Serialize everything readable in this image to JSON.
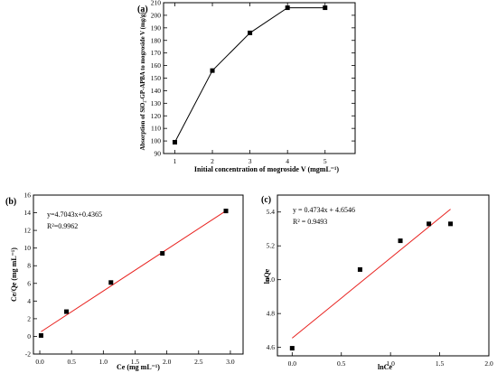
{
  "chart_data": [
    {
      "id": "a",
      "panel_label": "(a)",
      "type": "line",
      "xlabel": "Initial concentration of mogroside V (mgmL⁻¹)",
      "ylabel": "Absorption of SiO₂-GP-APBA to mogroside V (mg/g)",
      "xlim": [
        0.7,
        5.8
      ],
      "ylim": [
        90,
        210
      ],
      "xticks": [
        1,
        2,
        3,
        4,
        5
      ],
      "yticks": [
        90,
        100,
        110,
        120,
        130,
        140,
        150,
        160,
        170,
        180,
        190,
        200,
        210
      ],
      "x": [
        1,
        2,
        3,
        4,
        5
      ],
      "y": [
        99,
        156,
        186,
        206,
        206
      ],
      "grid": false
    },
    {
      "id": "b",
      "panel_label": "(b)",
      "type": "scatter",
      "xlabel": "Ce (mg mL⁻¹)",
      "ylabel": "Ce/Qe (mg mL⁻¹)",
      "xlim": [
        -0.1,
        3.2
      ],
      "ylim": [
        -2,
        16
      ],
      "xticks": [
        "0.0",
        "0.5",
        "1.0",
        "1.5",
        "2.0",
        "2.5",
        "3.0"
      ],
      "yticks": [
        "-2",
        "0",
        "2",
        "4",
        "6",
        "8",
        "10",
        "12",
        "14",
        "16"
      ],
      "x": [
        0.02,
        0.42,
        1.12,
        1.93,
        2.93
      ],
      "y": [
        0.1,
        2.8,
        6.1,
        9.4,
        14.2
      ],
      "fit": {
        "slope": 4.7043,
        "intercept": 0.4365,
        "x_range": [
          0.02,
          2.93
        ],
        "color": "#e8211e"
      },
      "annotation": [
        "y=4.7043x+0.4365",
        "R²=0.9962"
      ],
      "grid": false
    },
    {
      "id": "c",
      "panel_label": "(c)",
      "type": "scatter",
      "xlabel": "lnCe",
      "ylabel": "lnQe",
      "xlim": [
        -0.15,
        2.0
      ],
      "ylim": [
        4.55,
        5.5
      ],
      "xticks": [
        "0.0",
        "0.5",
        "1.0",
        "1.5",
        "2.0"
      ],
      "yticks": [
        "4.6",
        "4.8",
        "5.0",
        "5.2",
        "5.4"
      ],
      "x": [
        0.0,
        0.69,
        1.1,
        1.39,
        1.61
      ],
      "y": [
        4.595,
        5.06,
        5.23,
        5.33,
        5.33
      ],
      "fit": {
        "slope": 0.4734,
        "intercept": 4.6546,
        "x_range": [
          0.0,
          1.61
        ],
        "color": "#e8211e"
      },
      "annotation": [
        "y = 0.4734x + 4.6546",
        "R² = 0.9493"
      ],
      "grid": false
    }
  ]
}
